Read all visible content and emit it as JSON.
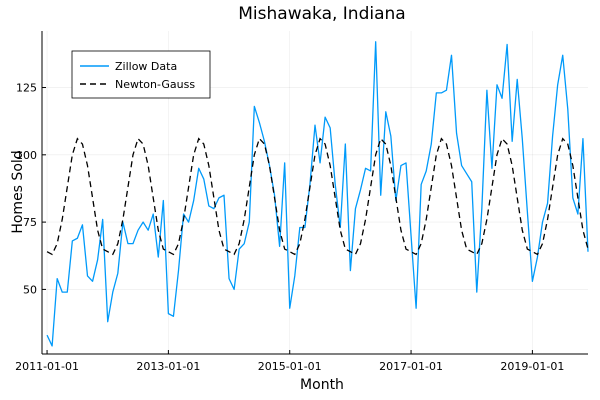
{
  "chart_data": {
    "type": "line",
    "title": "Mishawaka, Indiana",
    "xlabel": "Month",
    "ylabel": "Homes Sold",
    "grid": true,
    "legend_position": "top-left",
    "x_start": "2011-01",
    "xlim": [
      -1,
      107
    ],
    "ylim": [
      26,
      146
    ],
    "x_ticks": [
      {
        "index": 0,
        "label": "2011-01-01"
      },
      {
        "index": 24,
        "label": "2013-01-01"
      },
      {
        "index": 48,
        "label": "2015-01-01"
      },
      {
        "index": 72,
        "label": "2017-01-01"
      },
      {
        "index": 96,
        "label": "2019-01-01"
      }
    ],
    "y_ticks": [
      50,
      75,
      100,
      125
    ],
    "colors": {
      "zillow": "#009AFA",
      "fit": "#000000"
    },
    "series": [
      {
        "name": "Zillow Data",
        "style": "solid",
        "values": [
          33,
          29,
          54,
          49,
          49,
          68,
          69,
          74,
          55,
          53,
          61,
          76,
          38,
          49,
          56,
          75,
          67,
          67,
          72,
          75,
          72,
          78,
          62,
          83,
          41,
          40,
          57,
          78,
          75,
          83,
          95,
          91,
          81,
          80,
          84,
          85,
          54,
          50,
          65,
          67,
          75,
          118,
          112,
          105,
          96,
          85,
          66,
          97,
          43,
          55,
          73,
          73,
          89,
          111,
          97,
          114,
          110,
          89,
          73,
          104,
          57,
          80,
          87,
          95,
          94,
          142,
          85,
          116,
          107,
          83,
          96,
          97,
          70,
          43,
          89,
          94,
          104,
          123,
          123,
          124,
          137,
          108,
          96,
          93,
          90,
          49,
          80,
          124,
          95,
          126,
          121,
          141,
          105,
          128,
          106,
          79,
          53,
          62,
          75,
          82,
          107,
          126,
          137,
          117,
          84,
          78,
          106,
          64
        ]
      },
      {
        "name": "Newton-Gauss",
        "style": "dashed",
        "values": [
          64,
          63,
          67,
          76,
          88,
          100,
          106,
          104,
          96,
          84,
          72,
          65
        ]
      }
    ]
  }
}
